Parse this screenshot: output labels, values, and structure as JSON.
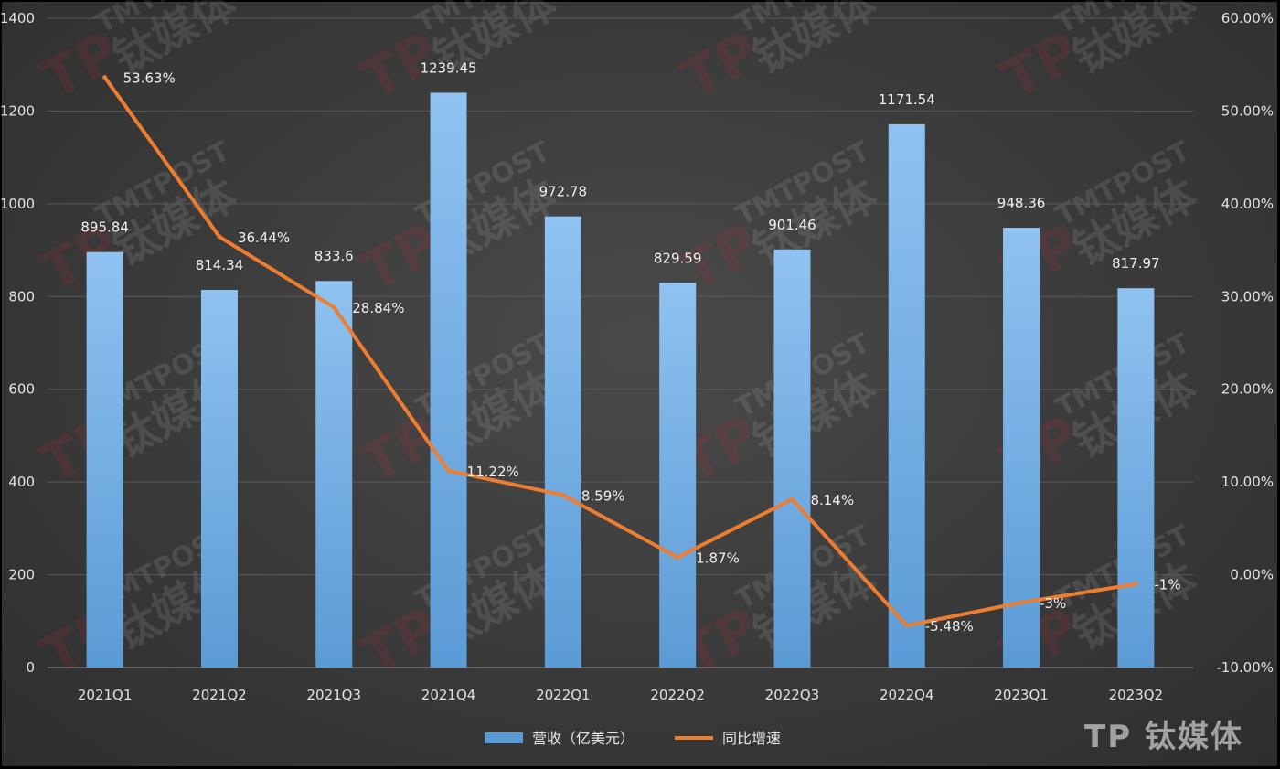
{
  "chart_data": {
    "type": "bar",
    "categories": [
      "2021Q1",
      "2021Q2",
      "2021Q3",
      "2021Q4",
      "2022Q1",
      "2022Q2",
      "2022Q3",
      "2022Q4",
      "2023Q1",
      "2023Q2"
    ],
    "series": [
      {
        "name": "营收（亿美元）",
        "type": "bar",
        "axis": "left",
        "values": [
          895.84,
          814.34,
          833.6,
          1239.45,
          972.78,
          829.59,
          901.46,
          1171.54,
          948.36,
          817.97
        ],
        "labels": [
          "895.84",
          "814.34",
          "833.6",
          "1239.45",
          "972.78",
          "829.59",
          "901.46",
          "1171.54",
          "948.36",
          "817.97"
        ],
        "color": "#5b9bd5"
      },
      {
        "name": "同比增速",
        "type": "line",
        "axis": "right",
        "values": [
          53.63,
          36.44,
          28.84,
          11.22,
          8.59,
          1.87,
          8.14,
          -5.48,
          -3,
          -1
        ],
        "labels": [
          "53.63%",
          "36.44%",
          "28.84%",
          "11.22%",
          "8.59%",
          "1.87%",
          "8.14%",
          "-5.48%",
          "-3%",
          "-1%"
        ],
        "color": "#ed7d31"
      }
    ],
    "y_left": {
      "min": 0,
      "max": 1400,
      "step": 200,
      "ticks": [
        "0",
        "200",
        "400",
        "600",
        "800",
        "1000",
        "1200",
        "1400"
      ]
    },
    "y_right": {
      "min": -10,
      "max": 60,
      "step": 10,
      "ticks": [
        "-10.00%",
        "0.00%",
        "10.00%",
        "20.00%",
        "30.00%",
        "40.00%",
        "50.00%",
        "60.00%"
      ]
    },
    "legend": {
      "position": "bottom",
      "items": [
        "营收（亿美元）",
        "同比增速"
      ]
    },
    "grid": true
  },
  "watermark": {
    "text": "TMTPOST",
    "brand": "钛媒体",
    "logo": "TP"
  }
}
